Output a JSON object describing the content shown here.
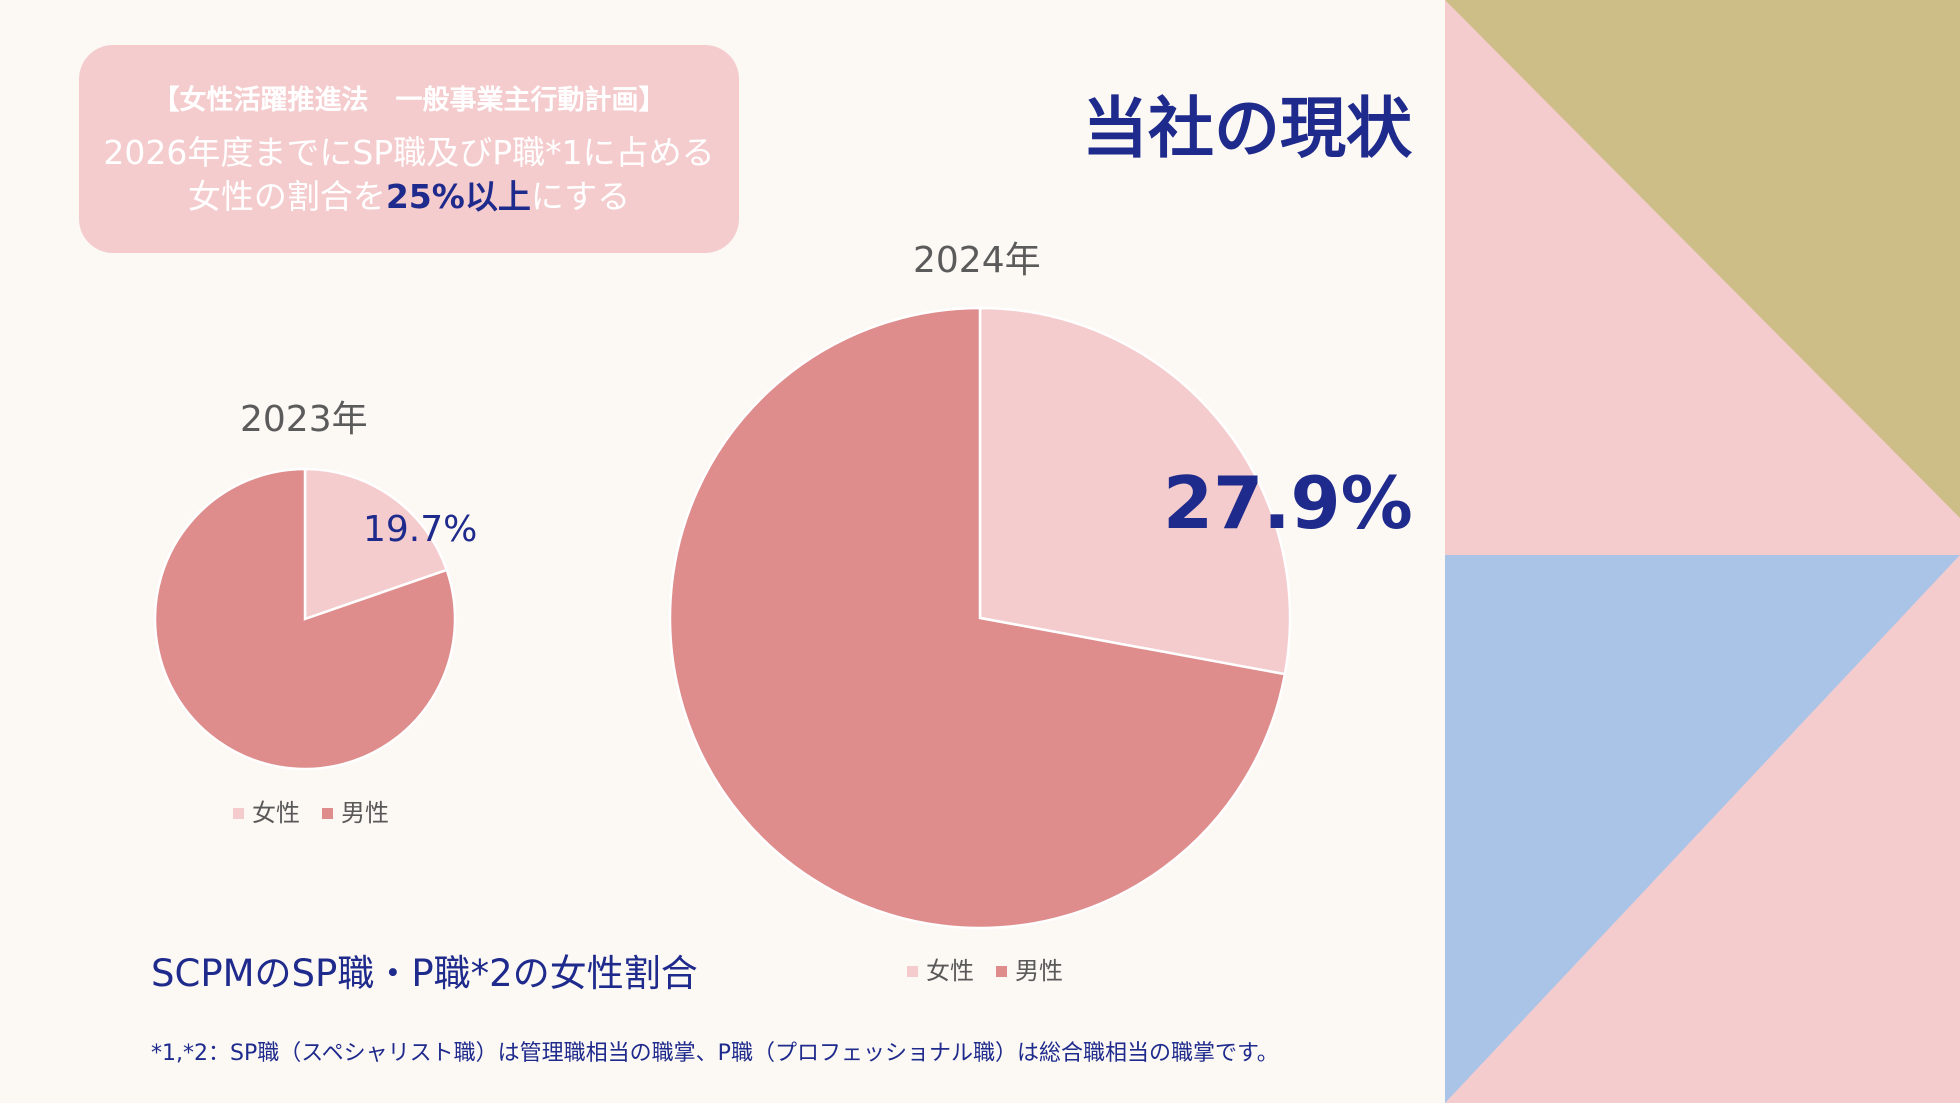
{
  "goal": {
    "line1": "【女性活躍推進法　一般事業主行動計画】",
    "line2_before": "2026年度までにSP職及びP職*1に占める女性の割合を",
    "line2_highlight": "25%以上",
    "line2_after": "にする"
  },
  "title": "当社の現状",
  "chart_caption": "SCPMのSP職・P職*2の女性割合",
  "footnote": "*1,*2：SP職（スペシャリスト職）は管理職相当の職掌、P職（プロフェッショナル職）は総合職相当の職掌です。",
  "colors": {
    "female": "#f5ccce",
    "male": "#de8c8c",
    "accent": "#1e2a8c",
    "deco_gold": "#cdbe88",
    "deco_pink": "#f5ccce",
    "deco_blue": "#aac4e8"
  },
  "chart_data": [
    {
      "type": "pie",
      "title": "2023年",
      "slices": [
        {
          "name": "女性",
          "value": 19.7,
          "label": "19.7%"
        },
        {
          "name": "男性",
          "value": 80.3,
          "label": ""
        }
      ],
      "legend": [
        "女性",
        "男性"
      ],
      "legend_position": "bottom"
    },
    {
      "type": "pie",
      "title": "2024年",
      "slices": [
        {
          "name": "女性",
          "value": 27.9,
          "label": "27.9%"
        },
        {
          "name": "男性",
          "value": 72.1,
          "label": ""
        }
      ],
      "legend": [
        "女性",
        "男性"
      ],
      "legend_position": "bottom"
    }
  ]
}
